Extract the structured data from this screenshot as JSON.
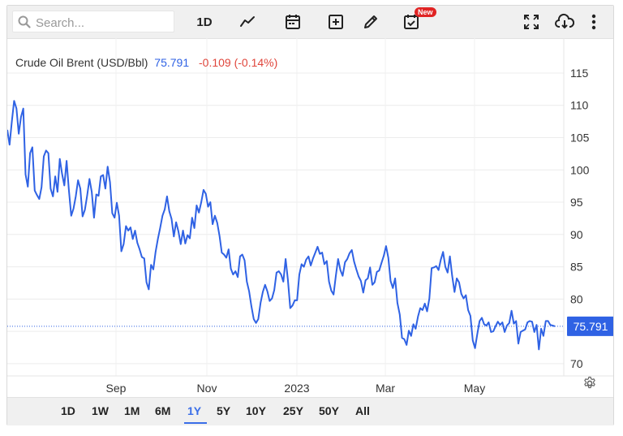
{
  "search": {
    "placeholder": "Search..."
  },
  "toolbar": {
    "interval_label": "1D",
    "new_badge": "New"
  },
  "legend": {
    "name": "Crude Oil Brent (USD/Bbl)",
    "price": "75.791",
    "change": "-0.109 (-0.14%)"
  },
  "ranges": [
    "1D",
    "1W",
    "1M",
    "6M",
    "1Y",
    "5Y",
    "10Y",
    "25Y",
    "50Y",
    "All"
  ],
  "active_range": "1Y",
  "colors": {
    "line": "#2f62e4",
    "up": "#2f62e4",
    "down": "#e0463c",
    "accent": "#3a6ee8"
  },
  "chart_data": {
    "type": "line",
    "title": "Crude Oil Brent (USD/Bbl)",
    "x_ticks": [
      "Sep",
      "Nov",
      "2023",
      "Mar",
      "May"
    ],
    "y_ticks": [
      70,
      75,
      80,
      85,
      90,
      95,
      100,
      105,
      110,
      115
    ],
    "ylim": [
      68.1,
      120.4
    ],
    "last_value": 75.791,
    "grid": true,
    "values": [
      106.2,
      103.9,
      107.5,
      110.7,
      109.5,
      105.6,
      108.2,
      109.5,
      99.3,
      97.4,
      102.6,
      103.5,
      96.8,
      96.1,
      95.5,
      97.3,
      102.1,
      103.0,
      102.6,
      97.1,
      95.9,
      99.0,
      96.6,
      101.7,
      99.4,
      97.6,
      101.4,
      96.9,
      92.9,
      94.0,
      95.9,
      98.4,
      97.1,
      92.8,
      93.8,
      96.0,
      98.6,
      96.6,
      92.6,
      96.2,
      96.0,
      99.0,
      99.2,
      97.1,
      100.5,
      98.1,
      93.3,
      92.6,
      94.9,
      92.9,
      87.4,
      88.5,
      91.3,
      90.6,
      91.1,
      89.3,
      90.6,
      88.7,
      87.7,
      86.5,
      86.3,
      82.6,
      81.5,
      85.3,
      84.6,
      87.3,
      89.3,
      91.0,
      92.9,
      93.9,
      95.9,
      93.6,
      92.4,
      89.7,
      91.9,
      90.5,
      88.5,
      90.6,
      88.6,
      89.9,
      89.4,
      92.6,
      91.0,
      94.5,
      93.4,
      95.0,
      96.9,
      96.3,
      94.3,
      95.0,
      91.6,
      92.9,
      91.8,
      89.8,
      87.2,
      86.9,
      86.4,
      87.7,
      84.7,
      83.8,
      84.3,
      83.4,
      86.6,
      86.9,
      86.0,
      82.7,
      81.2,
      78.9,
      76.9,
      76.3,
      76.9,
      79.4,
      81.1,
      82.2,
      81.2,
      79.7,
      80.1,
      81.4,
      84.1,
      84.3,
      83.8,
      82.7,
      86.2,
      83.0,
      78.6,
      79.0,
      79.8,
      79.8,
      83.8,
      85.4,
      85.0,
      86.1,
      86.6,
      85.2,
      86.3,
      87.2,
      88.1,
      87.0,
      87.2,
      85.4,
      85.9,
      82.7,
      81.3,
      80.7,
      83.6,
      86.2,
      84.5,
      83.6,
      85.7,
      86.2,
      87.1,
      87.6,
      85.8,
      84.6,
      83.5,
      82.8,
      81.0,
      82.9,
      83.2,
      84.9,
      82.2,
      82.6,
      84.2,
      84.4,
      85.6,
      86.7,
      88.2,
      86.4,
      82.8,
      81.7,
      83.2,
      79.4,
      77.6,
      74.0,
      73.8,
      72.9,
      75.1,
      74.3,
      76.1,
      75.4,
      77.3,
      78.6,
      78.3,
      79.3,
      78.1,
      80.1,
      84.8,
      84.9,
      85.1,
      84.5,
      86.1,
      87.3,
      85.0,
      84.1,
      86.6,
      83.6,
      81.1,
      83.2,
      82.6,
      80.8,
      80.1,
      80.6,
      78.3,
      77.4,
      73.6,
      72.4,
      74.6,
      76.6,
      77.1,
      76.1,
      75.9,
      76.4,
      74.9,
      75.0,
      75.8,
      76.5,
      76.0,
      76.4,
      74.9,
      75.9,
      76.3,
      78.2,
      76.2,
      76.6,
      73.1,
      74.9,
      75.1,
      75.3,
      76.4,
      76.6,
      76.5,
      74.9,
      76.0,
      72.2,
      75.4,
      74.3,
      76.6,
      76.6,
      76.0,
      75.9,
      75.8
    ]
  }
}
